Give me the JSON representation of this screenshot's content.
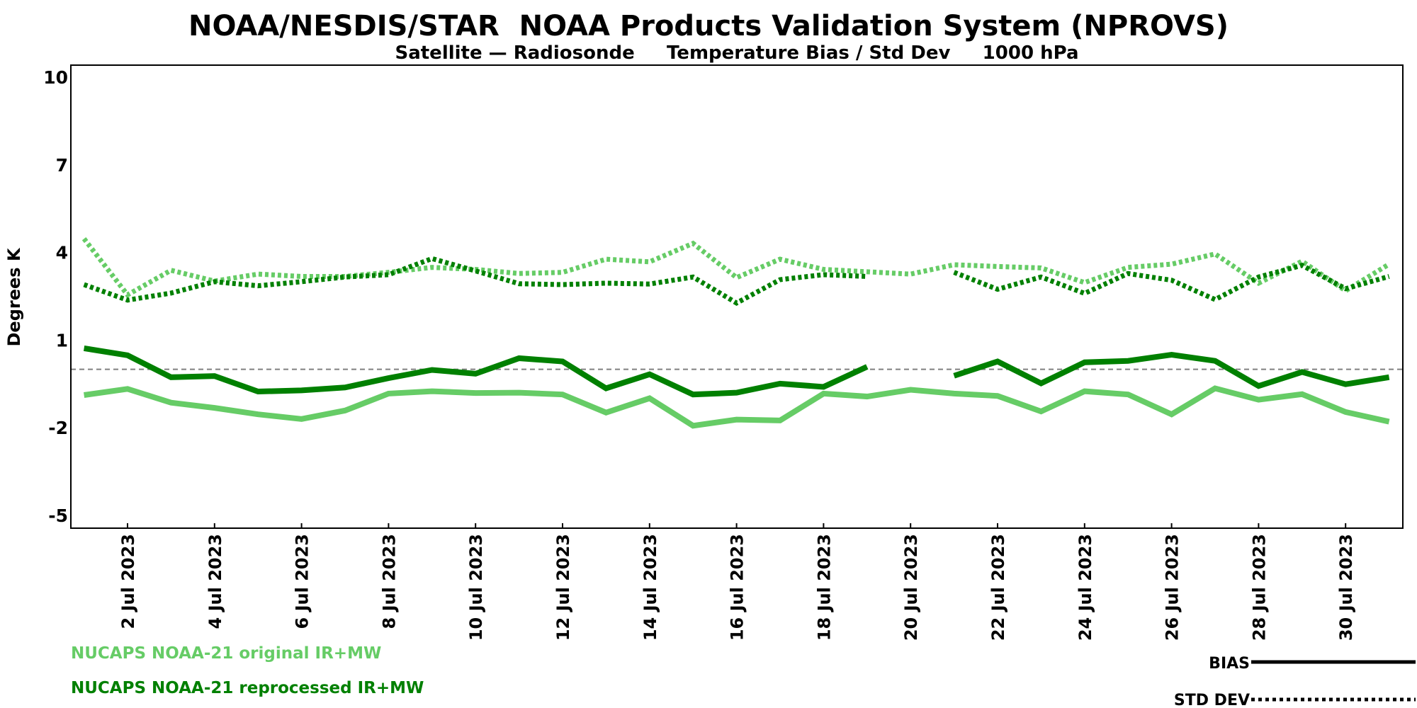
{
  "chart_data": {
    "type": "line",
    "title": "NOAA/NESDIS/STAR  NOAA Products Validation System (NPROVS)",
    "subtitle": "Satellite — Radiosonde     Temperature Bias / Std Dev     1000 hPa",
    "ylabel": "Degrees K",
    "xlabel": "",
    "ylim": [
      -5,
      10
    ],
    "yticks": [
      10,
      7,
      4,
      1,
      -2,
      -5
    ],
    "x": [
      "1 Jul 2023",
      "2 Jul 2023",
      "3 Jul 2023",
      "4 Jul 2023",
      "5 Jul 2023",
      "6 Jul 2023",
      "7 Jul 2023",
      "8 Jul 2023",
      "9 Jul 2023",
      "10 Jul 2023",
      "11 Jul 2023",
      "12 Jul 2023",
      "13 Jul 2023",
      "14 Jul 2023",
      "15 Jul 2023",
      "16 Jul 2023",
      "17 Jul 2023",
      "18 Jul 2023",
      "19 Jul 2023",
      "20 Jul 2023",
      "21 Jul 2023",
      "22 Jul 2023",
      "23 Jul 2023",
      "24 Jul 2023",
      "25 Jul 2023",
      "26 Jul 2023",
      "27 Jul 2023",
      "28 Jul 2023",
      "29 Jul 2023",
      "30 Jul 2023",
      "31 Jul 2023"
    ],
    "xticks": [
      "2 Jul 2023",
      "4 Jul 2023",
      "6 Jul 2023",
      "8 Jul 2023",
      "10 Jul 2023",
      "12 Jul 2023",
      "14 Jul 2023",
      "16 Jul 2023",
      "18 Jul 2023",
      "20 Jul 2023",
      "22 Jul 2023",
      "24 Jul 2023",
      "26 Jul 2023",
      "28 Jul 2023",
      "30 Jul 2023"
    ],
    "zero_line": {
      "value": 0,
      "style": "dashed",
      "color": "#808080"
    },
    "grid": false,
    "series": [
      {
        "name": "NUCAPS NOAA-21 original IR+MW",
        "stat": "BIAS",
        "color": "#66cc66",
        "style": "solid",
        "values": [
          -0.88,
          -0.67,
          -1.14,
          -1.32,
          -1.54,
          -1.7,
          -1.41,
          -0.83,
          -0.75,
          -0.81,
          -0.8,
          -0.86,
          -1.48,
          -0.99,
          -1.93,
          -1.72,
          -1.75,
          -0.83,
          -0.93,
          -0.7,
          -0.83,
          -0.91,
          -1.44,
          -0.75,
          -0.86,
          -1.54,
          -0.65,
          -1.04,
          -0.85,
          -1.46,
          -1.79
        ]
      },
      {
        "name": "NUCAPS NOAA-21 reprocessed IR+MW",
        "stat": "BIAS",
        "color": "#008000",
        "style": "solid",
        "values": [
          0.72,
          0.48,
          -0.27,
          -0.23,
          -0.76,
          -0.72,
          -0.62,
          -0.3,
          -0.02,
          -0.15,
          0.38,
          0.27,
          -0.65,
          -0.17,
          -0.86,
          -0.8,
          -0.49,
          -0.6,
          0.09,
          null,
          -0.22,
          0.27,
          -0.48,
          0.24,
          0.29,
          0.5,
          0.29,
          -0.57,
          -0.09,
          -0.51,
          -0.27
        ]
      },
      {
        "name": "NUCAPS NOAA-21 original IR+MW",
        "stat": "STD DEV",
        "color": "#66cc66",
        "style": "dotted",
        "values": [
          4.47,
          2.55,
          3.39,
          3.02,
          3.26,
          3.18,
          3.18,
          3.32,
          3.49,
          3.42,
          3.28,
          3.32,
          3.77,
          3.68,
          4.31,
          3.14,
          3.77,
          3.42,
          3.34,
          3.26,
          3.58,
          3.52,
          3.47,
          2.97,
          3.49,
          3.6,
          3.95,
          2.95,
          3.7,
          2.69,
          3.6
        ]
      },
      {
        "name": "NUCAPS NOAA-21 reprocessed IR+MW",
        "stat": "STD DEV",
        "color": "#008000",
        "style": "dotted",
        "values": [
          2.9,
          2.37,
          2.61,
          3.0,
          2.86,
          3.0,
          3.16,
          3.24,
          3.79,
          3.37,
          2.93,
          2.9,
          2.95,
          2.92,
          3.16,
          2.27,
          3.07,
          3.24,
          3.18,
          null,
          3.32,
          2.74,
          3.16,
          2.6,
          3.28,
          3.05,
          2.39,
          3.16,
          3.56,
          2.76,
          3.18
        ]
      }
    ],
    "legend": {
      "series_labels": [
        "NUCAPS NOAA-21 original IR+MW",
        "NUCAPS NOAA-21 reprocessed IR+MW"
      ],
      "series_colors": [
        "#66cc66",
        "#008000"
      ],
      "style_labels": {
        "bias": "BIAS",
        "std": "STD DEV"
      },
      "placement": "bottom"
    }
  }
}
